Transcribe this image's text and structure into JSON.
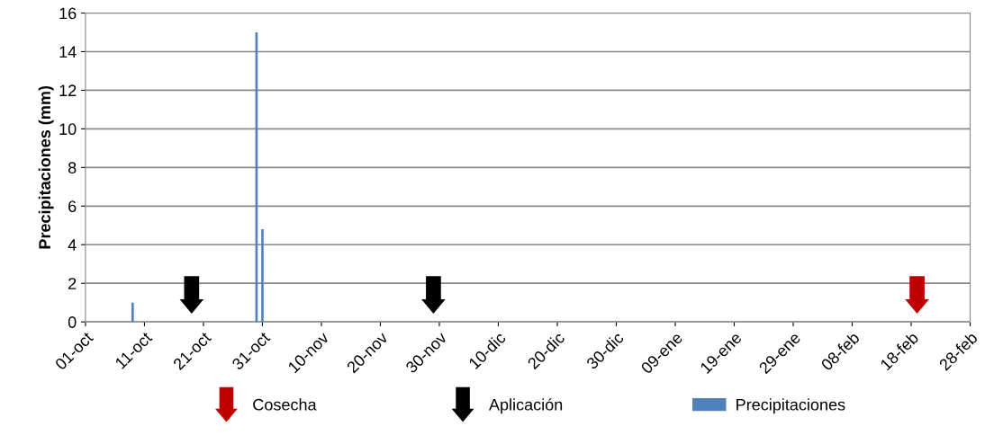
{
  "chart_data": {
    "type": "bar",
    "ylabel": "Precipitaciones (mm)",
    "ylim": [
      0,
      16
    ],
    "yticks": [
      0,
      2,
      4,
      6,
      8,
      10,
      12,
      14,
      16
    ],
    "categories": [
      "01-oct",
      null,
      null,
      null,
      null,
      null,
      null,
      null,
      null,
      null,
      "11-oct",
      null,
      null,
      null,
      null,
      null,
      null,
      null,
      null,
      null,
      "21-oct",
      null,
      null,
      null,
      null,
      null,
      null,
      null,
      null,
      null,
      "31-oct",
      null,
      null,
      null,
      null,
      null,
      null,
      null,
      null,
      null,
      "10-nov",
      null,
      null,
      null,
      null,
      null,
      null,
      null,
      null,
      null,
      "20-nov",
      null,
      null,
      null,
      null,
      null,
      null,
      null,
      null,
      null,
      "30-nov",
      null,
      null,
      null,
      null,
      null,
      null,
      null,
      null,
      null,
      "10-dic",
      null,
      null,
      null,
      null,
      null,
      null,
      null,
      null,
      null,
      "20-dic",
      null,
      null,
      null,
      null,
      null,
      null,
      null,
      null,
      null,
      "30-dic",
      null,
      null,
      null,
      null,
      null,
      null,
      null,
      null,
      null,
      "09-ene",
      null,
      null,
      null,
      null,
      null,
      null,
      null,
      null,
      null,
      "19-ene",
      null,
      null,
      null,
      null,
      null,
      null,
      null,
      null,
      null,
      "29-ene",
      null,
      null,
      null,
      null,
      null,
      null,
      null,
      null,
      null,
      "08-feb",
      null,
      null,
      null,
      null,
      null,
      null,
      null,
      null,
      null,
      "18-feb",
      null,
      null,
      null,
      null,
      null,
      null,
      null,
      null,
      null,
      "28-feb"
    ],
    "series": [
      {
        "name": "Cosecha",
        "type": "scatter",
        "color": "#c00000",
        "values": [
          null,
          null,
          null,
          null,
          null,
          null,
          null,
          null,
          null,
          null,
          null,
          null,
          null,
          null,
          null,
          null,
          null,
          null,
          null,
          null,
          null,
          null,
          null,
          null,
          null,
          null,
          null,
          null,
          null,
          null,
          null,
          null,
          null,
          null,
          null,
          null,
          null,
          null,
          null,
          null,
          null,
          null,
          null,
          null,
          null,
          null,
          null,
          null,
          null,
          null,
          null,
          null,
          null,
          null,
          null,
          null,
          null,
          null,
          null,
          null,
          null,
          null,
          null,
          null,
          null,
          null,
          null,
          null,
          null,
          null,
          null,
          null,
          null,
          null,
          null,
          null,
          null,
          null,
          null,
          null,
          null,
          null,
          null,
          null,
          null,
          null,
          null,
          null,
          null,
          null,
          null,
          null,
          null,
          null,
          null,
          null,
          null,
          null,
          null,
          null,
          null,
          null,
          null,
          null,
          null,
          null,
          null,
          null,
          null,
          null,
          null,
          null,
          null,
          null,
          null,
          null,
          null,
          null,
          null,
          null,
          null,
          null,
          null,
          null,
          null,
          null,
          null,
          null,
          null,
          null,
          null,
          null,
          null,
          null,
          null,
          null,
          null,
          null,
          null,
          null,
          null,
          1.4,
          null,
          null,
          null,
          null,
          null,
          null,
          null,
          null,
          null
        ]
      },
      {
        "name": "Aplicación",
        "type": "scatter",
        "color": "#000000",
        "values": [
          null,
          null,
          null,
          null,
          null,
          null,
          null,
          null,
          null,
          null,
          null,
          null,
          null,
          null,
          null,
          null,
          null,
          null,
          1.4,
          null,
          null,
          null,
          null,
          null,
          null,
          null,
          null,
          null,
          null,
          null,
          null,
          null,
          null,
          null,
          null,
          null,
          null,
          null,
          null,
          null,
          null,
          null,
          null,
          null,
          null,
          null,
          null,
          null,
          null,
          null,
          null,
          null,
          null,
          null,
          null,
          null,
          null,
          null,
          null,
          1.4,
          null,
          null,
          null,
          null,
          null,
          null,
          null,
          null,
          null,
          null,
          null,
          null,
          null,
          null,
          null,
          null,
          null,
          null,
          null,
          null,
          null,
          null,
          null,
          null,
          null,
          null,
          null,
          null,
          null,
          null,
          null,
          null,
          null,
          null,
          null,
          null,
          null,
          null,
          null,
          null,
          null,
          null,
          null,
          null,
          null,
          null,
          null,
          null,
          null,
          null,
          null,
          null,
          null,
          null,
          null,
          null,
          null,
          null,
          null,
          null,
          null,
          null,
          null,
          null,
          null,
          null,
          null,
          null,
          null,
          null,
          null,
          null,
          null,
          null,
          null,
          null,
          null,
          null,
          null,
          null,
          null,
          null,
          null,
          null,
          null,
          null,
          null,
          null,
          null,
          null,
          null
        ]
      },
      {
        "name": "Precipitaciones",
        "color": "#4f81bd",
        "values": [
          null,
          null,
          null,
          null,
          null,
          null,
          null,
          null,
          1.0,
          null,
          null,
          null,
          null,
          null,
          null,
          null,
          null,
          null,
          null,
          null,
          null,
          null,
          null,
          null,
          null,
          null,
          null,
          null,
          null,
          15.0,
          4.8,
          null,
          null,
          null,
          null,
          null,
          null,
          null,
          null,
          null,
          null,
          null,
          null,
          null,
          null,
          null,
          null,
          null,
          null,
          null,
          null,
          null,
          null,
          null,
          null,
          null,
          null,
          null,
          null,
          null,
          null,
          null,
          null,
          null,
          null,
          null,
          null,
          null,
          null,
          null,
          null,
          null,
          null,
          null,
          null,
          null,
          null,
          null,
          null,
          null,
          null,
          null,
          null,
          null,
          null,
          null,
          null,
          null,
          null,
          null,
          null,
          null,
          null,
          null,
          null,
          null,
          null,
          null,
          null,
          null,
          null,
          null,
          null,
          null,
          null,
          null,
          null,
          null,
          null,
          null,
          null,
          null,
          null,
          null,
          null,
          null,
          null,
          null,
          null,
          null,
          null,
          null,
          null,
          null,
          null,
          null,
          null,
          null,
          null,
          null,
          null,
          null,
          null,
          null,
          null,
          null,
          null,
          null,
          null,
          null,
          null,
          null,
          null,
          null,
          null,
          null,
          null,
          null,
          null,
          null,
          null
        ]
      }
    ],
    "grid": "y",
    "legend": "bottom"
  }
}
